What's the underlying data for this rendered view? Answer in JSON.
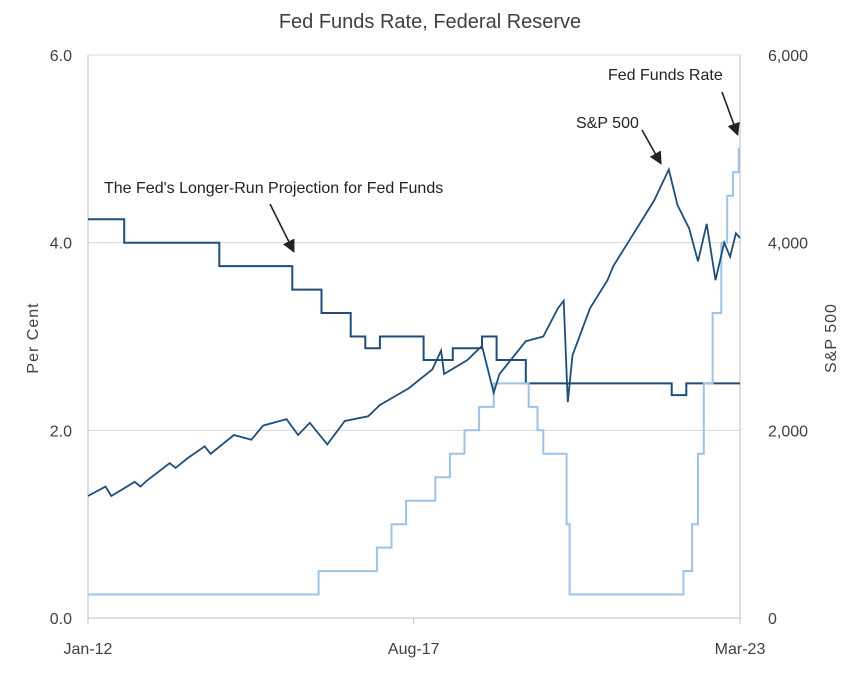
{
  "chart_data": {
    "type": "line",
    "title": "Fed Funds Rate, Federal Reserve",
    "ylabel": "Per Cent",
    "y2label": "S&P  500",
    "ylim": [
      0,
      6
    ],
    "y2lim": [
      0,
      6000
    ],
    "yticks": [
      "0.0",
      "2.0",
      "4.0",
      "6.0"
    ],
    "y2ticks": [
      "0",
      "2,000",
      "4,000",
      "6,000"
    ],
    "xticks": [
      {
        "label": "Jan-12",
        "t": 2012.0
      },
      {
        "label": "Aug-17",
        "t": 2017.58
      },
      {
        "label": "Mar-23",
        "t": 2023.17
      }
    ],
    "xlim": [
      2012.0,
      2023.17
    ],
    "grid": "horizontal",
    "legend": "none",
    "colors": {
      "dark": "#1f4e79",
      "light": "#9dc3e6",
      "grid": "#d9d9d9",
      "axis": "#bfbfbf"
    },
    "series": [
      {
        "key": "projection",
        "axis": "left",
        "color": "#1f4e79",
        "step": true,
        "points": [
          [
            2012.0,
            4.25
          ],
          [
            2012.62,
            4.0
          ],
          [
            2014.25,
            3.75
          ],
          [
            2015.5,
            3.5
          ],
          [
            2016.0,
            3.25
          ],
          [
            2016.5,
            3.0
          ],
          [
            2016.75,
            2.875
          ],
          [
            2017.0,
            3.0
          ],
          [
            2017.75,
            2.75
          ],
          [
            2018.25,
            2.875
          ],
          [
            2018.75,
            3.0
          ],
          [
            2019.0,
            2.75
          ],
          [
            2019.5,
            2.5
          ],
          [
            2022.0,
            2.375
          ],
          [
            2022.25,
            2.5
          ],
          [
            2023.17,
            2.5
          ]
        ]
      },
      {
        "key": "fed_funds",
        "axis": "left",
        "color": "#9dc3e6",
        "step": true,
        "points": [
          [
            2012.0,
            0.25
          ],
          [
            2015.95,
            0.5
          ],
          [
            2016.95,
            0.75
          ],
          [
            2017.2,
            1.0
          ],
          [
            2017.45,
            1.25
          ],
          [
            2017.95,
            1.5
          ],
          [
            2018.2,
            1.75
          ],
          [
            2018.45,
            2.0
          ],
          [
            2018.7,
            2.25
          ],
          [
            2018.95,
            2.5
          ],
          [
            2019.55,
            2.25
          ],
          [
            2019.7,
            2.0
          ],
          [
            2019.8,
            1.75
          ],
          [
            2020.2,
            1.0
          ],
          [
            2020.25,
            0.25
          ],
          [
            2022.2,
            0.5
          ],
          [
            2022.35,
            1.0
          ],
          [
            2022.45,
            1.75
          ],
          [
            2022.55,
            2.5
          ],
          [
            2022.7,
            3.25
          ],
          [
            2022.85,
            4.0
          ],
          [
            2022.95,
            4.5
          ],
          [
            2023.05,
            4.75
          ],
          [
            2023.15,
            5.0
          ],
          [
            2023.17,
            5.0
          ]
        ]
      },
      {
        "key": "sp500",
        "axis": "right",
        "color": "#1f4e79",
        "step": false,
        "points": [
          [
            2012.0,
            1300
          ],
          [
            2012.3,
            1400
          ],
          [
            2012.4,
            1300
          ],
          [
            2012.8,
            1450
          ],
          [
            2012.9,
            1400
          ],
          [
            2013.0,
            1460
          ],
          [
            2013.4,
            1650
          ],
          [
            2013.5,
            1600
          ],
          [
            2013.7,
            1700
          ],
          [
            2014.0,
            1830
          ],
          [
            2014.1,
            1750
          ],
          [
            2014.5,
            1950
          ],
          [
            2014.8,
            1900
          ],
          [
            2015.0,
            2050
          ],
          [
            2015.4,
            2120
          ],
          [
            2015.6,
            1950
          ],
          [
            2015.8,
            2080
          ],
          [
            2016.1,
            1850
          ],
          [
            2016.4,
            2100
          ],
          [
            2016.8,
            2150
          ],
          [
            2017.0,
            2270
          ],
          [
            2017.5,
            2450
          ],
          [
            2017.9,
            2650
          ],
          [
            2018.05,
            2850
          ],
          [
            2018.1,
            2600
          ],
          [
            2018.5,
            2750
          ],
          [
            2018.75,
            2900
          ],
          [
            2018.95,
            2400
          ],
          [
            2019.05,
            2600
          ],
          [
            2019.5,
            2950
          ],
          [
            2019.8,
            3000
          ],
          [
            2020.05,
            3300
          ],
          [
            2020.15,
            3380
          ],
          [
            2020.22,
            2300
          ],
          [
            2020.3,
            2800
          ],
          [
            2020.6,
            3300
          ],
          [
            2020.9,
            3600
          ],
          [
            2021.0,
            3750
          ],
          [
            2021.4,
            4150
          ],
          [
            2021.7,
            4450
          ],
          [
            2021.95,
            4780
          ],
          [
            2022.1,
            4400
          ],
          [
            2022.3,
            4150
          ],
          [
            2022.45,
            3800
          ],
          [
            2022.6,
            4200
          ],
          [
            2022.75,
            3600
          ],
          [
            2022.9,
            4000
          ],
          [
            2023.0,
            3850
          ],
          [
            2023.1,
            4100
          ],
          [
            2023.17,
            4050
          ]
        ]
      }
    ],
    "annotations": [
      {
        "key": "projection_label",
        "text": "The Fed's Longer-Run Projection for Fed Funds"
      },
      {
        "key": "sp500_label",
        "text": "S&P 500"
      },
      {
        "key": "fedfunds_label",
        "text": "Fed Funds Rate"
      }
    ]
  }
}
